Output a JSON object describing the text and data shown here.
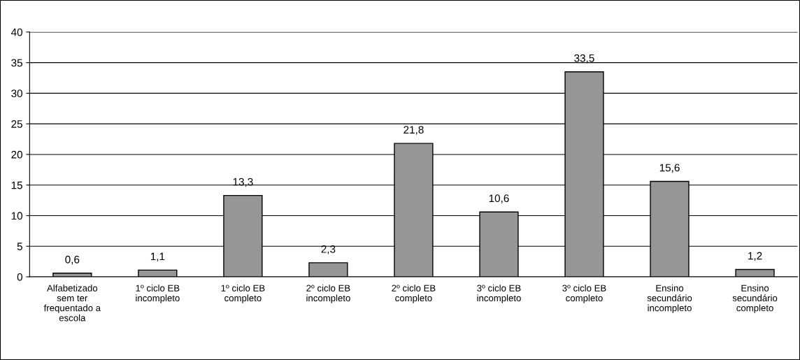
{
  "chart_data": {
    "type": "bar",
    "categories": [
      "Alfabetizado\nsem ter\nfrequentado a\nescola",
      "1º ciclo EB\nincompleto",
      "1º ciclo EB\ncompleto",
      "2º ciclo EB\nincompleto",
      "2º ciclo EB\ncompleto",
      "3º ciclo EB\nincompleto",
      "3º ciclo EB\ncompleto",
      "Ensino\nsecundário\nincompleto",
      "Ensino\nsecundário\ncompleto"
    ],
    "values": [
      0.6,
      1.1,
      13.3,
      2.3,
      21.8,
      10.6,
      33.5,
      15.6,
      1.2
    ],
    "value_labels": [
      "0,6",
      "1,1",
      "13,3",
      "2,3",
      "21,8",
      "10,6",
      "33,5",
      "15,6",
      "1,2"
    ],
    "color": "#969696",
    "ylim": [
      0,
      40
    ],
    "yticks": [
      0,
      5,
      10,
      15,
      20,
      25,
      30,
      35,
      40
    ],
    "grid": "y",
    "legend": false
  }
}
